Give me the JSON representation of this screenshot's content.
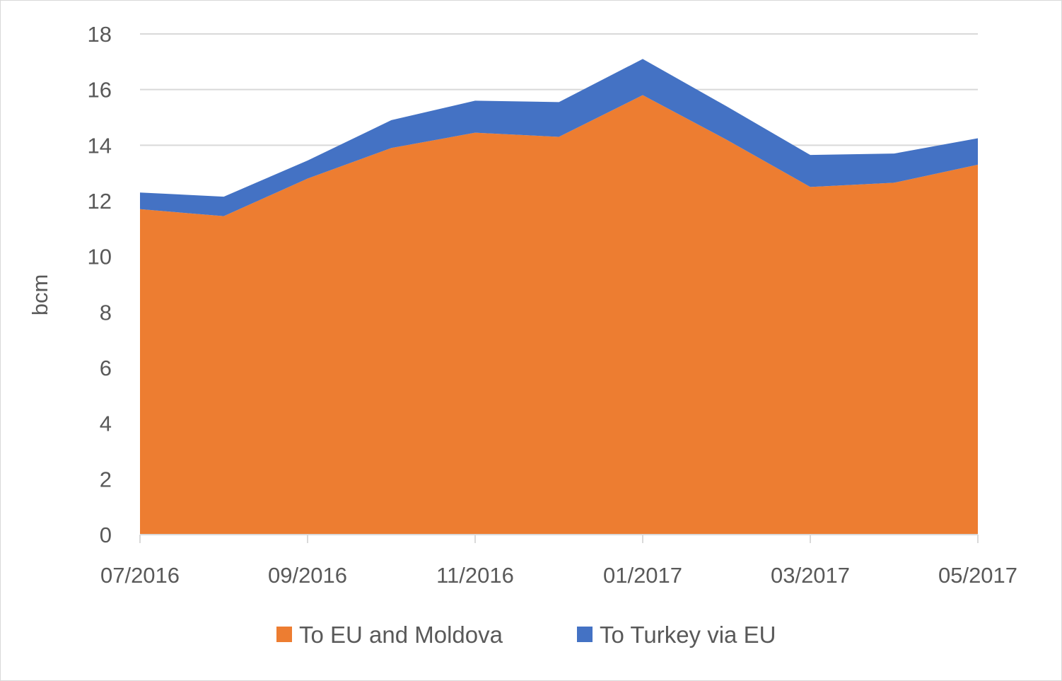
{
  "chart_data": {
    "type": "area",
    "stacked": true,
    "x": [
      "07/2016",
      "08/2016",
      "09/2016",
      "10/2016",
      "11/2016",
      "12/2016",
      "01/2017",
      "02/2017",
      "03/2017",
      "04/2017",
      "05/2017"
    ],
    "x_tick_labels": [
      "07/2016",
      "09/2016",
      "11/2016",
      "01/2017",
      "03/2017",
      "05/2017"
    ],
    "series": [
      {
        "name": "To EU and Moldova",
        "color": "#ed7d31",
        "values": [
          11.7,
          11.45,
          12.8,
          13.9,
          14.45,
          14.3,
          15.8,
          14.2,
          12.5,
          12.65,
          13.3
        ]
      },
      {
        "name": "To Turkey via EU",
        "color": "#4472c4",
        "values": [
          0.6,
          0.7,
          0.65,
          1.0,
          1.15,
          1.25,
          1.3,
          1.2,
          1.15,
          1.05,
          0.95
        ]
      }
    ],
    "ylabel": "bcm",
    "ylim": [
      0,
      18
    ],
    "y_ticks": [
      0,
      2,
      4,
      6,
      8,
      10,
      12,
      14,
      16,
      18
    ],
    "grid": true,
    "legend": "bottom",
    "colors": {
      "grid": "#d9d9d9",
      "axis": "#d9d9d9",
      "text": "#595959"
    }
  }
}
